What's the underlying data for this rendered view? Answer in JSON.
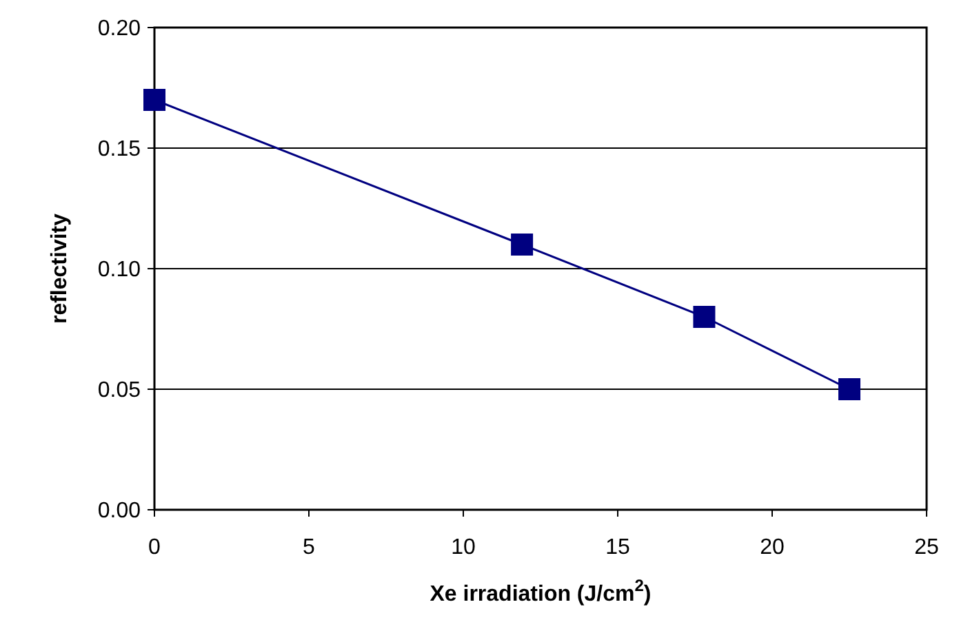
{
  "chart_data": {
    "type": "line",
    "xlabel": "Xe irradiation  (J/cm$^{2}$)",
    "ylabel": "reflectivity",
    "x": [
      0,
      11.9,
      17.8,
      22.5
    ],
    "series": [
      {
        "color": "#000080",
        "values": [
          0.17,
          0.11,
          0.08,
          0.05
        ]
      }
    ],
    "xlim": [
      0,
      25
    ],
    "xticks": [
      0,
      5,
      10,
      15,
      20,
      25
    ],
    "ylim": [
      0,
      0.2
    ],
    "yticks": [
      {
        "value": 0,
        "label": "0.00"
      },
      {
        "value": 0.05,
        "label": "0.05"
      },
      {
        "value": 0.1,
        "label": "0.10"
      },
      {
        "value": 0.15,
        "label": "0.15"
      },
      {
        "value": 0.2,
        "label": "0.20"
      }
    ],
    "grid": "y",
    "marker": "square",
    "line_style": "solid"
  }
}
